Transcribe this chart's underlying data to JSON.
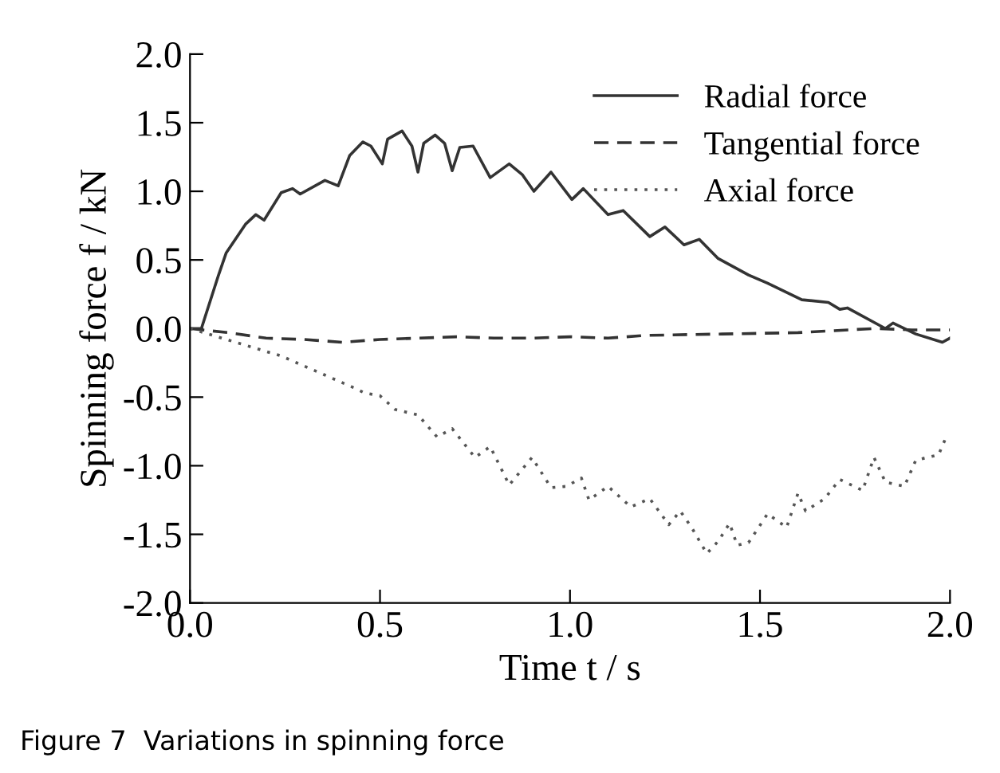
{
  "chart_data": {
    "type": "line",
    "xlabel": "Time t / s",
    "ylabel": "Spinning force f / kN",
    "xlim": [
      0,
      2.0
    ],
    "ylim": [
      -2.0,
      2.0
    ],
    "xticks": [
      {
        "value": 0,
        "label": "0.0"
      },
      0.5,
      {
        "value": 1,
        "label": "1.0"
      },
      1.5,
      {
        "value": 2,
        "label": "2.0"
      }
    ],
    "yticks": [
      {
        "value": -2,
        "label": "-2.0"
      },
      -1.5,
      {
        "value": -1,
        "label": "-1.0"
      },
      -0.5,
      {
        "value": 0,
        "label": "0.0"
      },
      0.5,
      {
        "value": 1,
        "label": "1.0"
      },
      1.5,
      {
        "value": 2,
        "label": "2.0"
      }
    ],
    "grid": false,
    "legend": "top right",
    "annotations": [
      "Figure 7  Variations in spinning force"
    ],
    "series": [
      {
        "name": "Radial force",
        "color": "#333333",
        "line_style": "solid",
        "x": [
          0,
          0.03,
          0.074,
          0.095,
          0.146,
          0.173,
          0.195,
          0.24,
          0.27,
          0.29,
          0.355,
          0.39,
          0.42,
          0.455,
          0.476,
          0.506,
          0.52,
          0.558,
          0.584,
          0.6,
          0.615,
          0.645,
          0.67,
          0.69,
          0.71,
          0.745,
          0.79,
          0.84,
          0.875,
          0.905,
          0.95,
          1.005,
          1.035,
          1.1,
          1.14,
          1.21,
          1.25,
          1.3,
          1.34,
          1.39,
          1.47,
          1.52,
          1.61,
          1.68,
          1.71,
          1.73,
          1.83,
          1.85,
          1.91,
          1.98,
          2.0
        ],
        "values": [
          0,
          0,
          0.38,
          0.55,
          0.76,
          0.83,
          0.79,
          0.99,
          1.02,
          0.98,
          1.08,
          1.04,
          1.26,
          1.36,
          1.33,
          1.2,
          1.38,
          1.44,
          1.33,
          1.14,
          1.35,
          1.41,
          1.35,
          1.15,
          1.32,
          1.33,
          1.1,
          1.2,
          1.12,
          1.0,
          1.14,
          0.94,
          1.02,
          0.83,
          0.86,
          0.67,
          0.74,
          0.61,
          0.65,
          0.51,
          0.39,
          0.33,
          0.21,
          0.19,
          0.14,
          0.15,
          0,
          0.04,
          -0.04,
          -0.1,
          -0.07
        ]
      },
      {
        "name": "Tangential force",
        "color": "#333333",
        "line_style": "dashed",
        "x": [
          0,
          0.1,
          0.2,
          0.3,
          0.4,
          0.5,
          0.6,
          0.7,
          0.8,
          0.9,
          1.0,
          1.1,
          1.2,
          1.4,
          1.6,
          1.8,
          1.9,
          2.0
        ],
        "values": [
          0,
          -0.03,
          -0.07,
          -0.08,
          -0.1,
          -0.08,
          -0.07,
          -0.06,
          -0.07,
          -0.07,
          -0.06,
          -0.07,
          -0.05,
          -0.04,
          -0.03,
          0.0,
          -0.01,
          -0.01
        ]
      },
      {
        "name": "Axial force",
        "color": "#555555",
        "line_style": "dotted",
        "x": [
          0,
          0.24,
          0.43,
          0.46,
          0.5,
          0.54,
          0.6,
          0.65,
          0.69,
          0.75,
          0.79,
          0.84,
          0.9,
          0.95,
          0.99,
          1.03,
          1.05,
          1.1,
          1.16,
          1.21,
          1.26,
          1.29,
          1.32,
          1.36,
          1.39,
          1.42,
          1.44,
          1.47,
          1.52,
          1.57,
          1.6,
          1.62,
          1.67,
          1.71,
          1.77,
          1.8,
          1.83,
          1.88,
          1.91,
          1.97,
          1.99
        ],
        "values": [
          0,
          -0.2,
          -0.43,
          -0.47,
          -0.49,
          -0.59,
          -0.63,
          -0.79,
          -0.73,
          -0.94,
          -0.86,
          -1.14,
          -0.94,
          -1.16,
          -1.15,
          -1.09,
          -1.25,
          -1.15,
          -1.3,
          -1.24,
          -1.43,
          -1.33,
          -1.45,
          -1.64,
          -1.55,
          -1.42,
          -1.58,
          -1.56,
          -1.35,
          -1.45,
          -1.2,
          -1.33,
          -1.24,
          -1.1,
          -1.18,
          -0.94,
          -1.12,
          -1.15,
          -0.96,
          -0.92,
          -0.79
        ]
      }
    ]
  }
}
